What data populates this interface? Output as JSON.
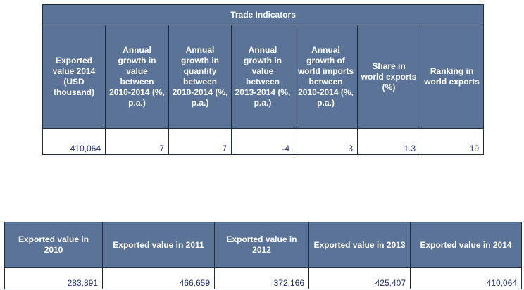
{
  "trade_indicators": {
    "title": "Trade Indicators",
    "headers": [
      "Exported value 2014 (USD thousand)",
      "Annual growth in value between 2010-2014 (%, p.a.)",
      "Annual growth in quantity between 2010-2014 (%, p.a.)",
      "Annual growth in value between 2013-2014 (%, p.a.)",
      "Annual growth of world imports between 2010-2014 (%, p.a.)",
      "Share in world exports (%)",
      "Ranking in world exports"
    ],
    "values": [
      "410,064",
      "7",
      "7",
      "-4",
      "3",
      "1.3",
      "19"
    ]
  },
  "exported_values": {
    "headers": [
      "Exported value in 2010",
      "Exported value in 2011",
      "Exported value in 2012",
      "Exported value in 2013",
      "Exported value in 2014"
    ],
    "values": [
      "283,891",
      "466,659",
      "372,166",
      "425,407",
      "410,064"
    ]
  }
}
